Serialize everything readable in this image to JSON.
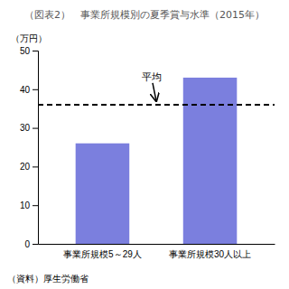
{
  "chart_data": {
    "type": "bar",
    "title": "（図表2）　事業所規模別の夏季賞与水準（2015年）",
    "categories": [
      "事業所規模5～29人",
      "事業所規模30人以上"
    ],
    "values": [
      26,
      43
    ],
    "color": "#7b7fde",
    "average": 36,
    "average_label": "平均",
    "ylabel": "（万円）",
    "source": "（資料）厚生労働省",
    "ylim": [
      0,
      50
    ],
    "yticks": [
      0,
      10,
      20,
      30,
      40,
      50
    ],
    "grid": false
  }
}
